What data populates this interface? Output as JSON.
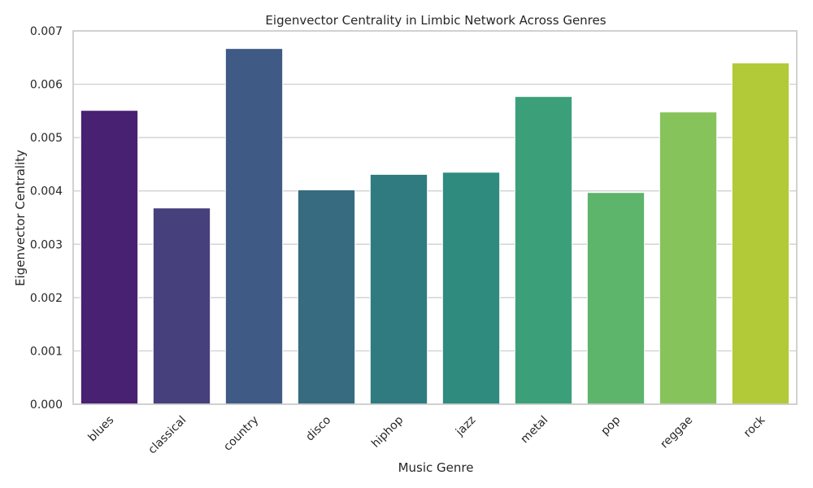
{
  "chart_data": {
    "type": "bar",
    "title": "Eigenvector Centrality in Limbic Network Across Genres",
    "xlabel": "Music Genre",
    "ylabel": "Eigenvector Centrality",
    "categories": [
      "blues",
      "classical",
      "country",
      "disco",
      "hiphop",
      "jazz",
      "metal",
      "pop",
      "reggae",
      "rock"
    ],
    "values": [
      0.00551,
      0.00368,
      0.00667,
      0.00402,
      0.00431,
      0.00435,
      0.00577,
      0.00397,
      0.00548,
      0.0064
    ],
    "ylim": [
      0,
      0.007
    ],
    "yticks": [
      "0.000",
      "0.001",
      "0.002",
      "0.003",
      "0.004",
      "0.005",
      "0.006",
      "0.007"
    ],
    "grid": "horizontal",
    "legend": "none",
    "colors": [
      "#482172",
      "#46407c",
      "#3f5a84",
      "#366b80",
      "#2f7b80",
      "#2e8b7e",
      "#3ba07a",
      "#5db46b",
      "#87c35b",
      "#b2ca38"
    ],
    "axis_color": "#cccccc",
    "grid_color": "#cccccc"
  }
}
